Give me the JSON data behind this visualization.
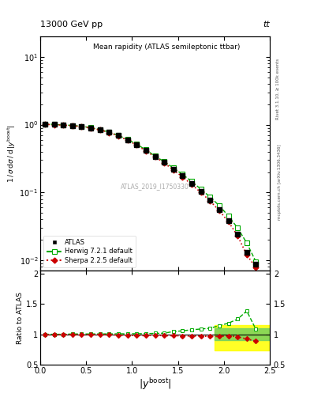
{
  "title": "Mean rapidity (ATLAS semileptonic ttbar)",
  "top_left_label": "13000 GeV pp",
  "top_right_label": "tt",
  "right_label_top": "Rivet 3.1.10, ≥ 100k events",
  "right_label_bot": "mcplots.cern.ch [arXiv:1306.3436]",
  "watermark": "ATLAS_2019_I1750330",
  "xlim": [
    0.0,
    2.5
  ],
  "ylim_main": [
    0.007,
    20
  ],
  "ylim_ratio": [
    0.5,
    2.05
  ],
  "atlas_x": [
    0.05,
    0.15,
    0.25,
    0.35,
    0.45,
    0.55,
    0.65,
    0.75,
    0.85,
    0.95,
    1.05,
    1.15,
    1.25,
    1.35,
    1.45,
    1.55,
    1.65,
    1.75,
    1.85,
    1.95,
    2.05,
    2.15,
    2.25,
    2.35
  ],
  "atlas_y": [
    1.02,
    1.01,
    0.99,
    0.97,
    0.94,
    0.9,
    0.84,
    0.77,
    0.69,
    0.6,
    0.51,
    0.42,
    0.34,
    0.28,
    0.22,
    0.175,
    0.135,
    0.103,
    0.078,
    0.056,
    0.038,
    0.024,
    0.013,
    0.0088
  ],
  "herwig_x": [
    0.05,
    0.15,
    0.25,
    0.35,
    0.45,
    0.55,
    0.65,
    0.75,
    0.85,
    0.95,
    1.05,
    1.15,
    1.25,
    1.35,
    1.45,
    1.55,
    1.65,
    1.75,
    1.85,
    1.95,
    2.05,
    2.15,
    2.25,
    2.35
  ],
  "herwig_y": [
    1.02,
    1.01,
    0.99,
    0.975,
    0.945,
    0.905,
    0.845,
    0.775,
    0.695,
    0.605,
    0.515,
    0.425,
    0.345,
    0.285,
    0.23,
    0.185,
    0.145,
    0.112,
    0.086,
    0.064,
    0.045,
    0.03,
    0.018,
    0.0095
  ],
  "sherpa_x": [
    0.05,
    0.15,
    0.25,
    0.35,
    0.45,
    0.55,
    0.65,
    0.75,
    0.85,
    0.95,
    1.05,
    1.15,
    1.25,
    1.35,
    1.45,
    1.55,
    1.65,
    1.75,
    1.85,
    1.95,
    2.05,
    2.15,
    2.25,
    2.35
  ],
  "sherpa_y": [
    1.01,
    1.0,
    0.985,
    0.965,
    0.935,
    0.895,
    0.835,
    0.765,
    0.68,
    0.59,
    0.5,
    0.41,
    0.335,
    0.273,
    0.215,
    0.17,
    0.131,
    0.1,
    0.075,
    0.054,
    0.037,
    0.023,
    0.012,
    0.0078
  ],
  "atlas_color": "#000000",
  "herwig_color": "#00aa00",
  "sherpa_color": "#cc0000",
  "herwig_ratio": [
    1.0,
    1.0,
    1.0,
    1.005,
    1.005,
    1.005,
    1.006,
    1.006,
    1.007,
    1.008,
    1.009,
    1.01,
    1.015,
    1.018,
    1.045,
    1.057,
    1.074,
    1.087,
    1.1,
    1.143,
    1.184,
    1.25,
    1.385,
    1.08
  ],
  "sherpa_ratio": [
    0.99,
    0.99,
    0.995,
    0.995,
    0.994,
    0.994,
    0.994,
    0.993,
    0.985,
    0.983,
    0.98,
    0.976,
    0.985,
    0.975,
    0.977,
    0.971,
    0.97,
    0.971,
    0.962,
    0.964,
    0.974,
    0.958,
    0.923,
    0.886
  ],
  "yellow_band_xlo": 1.9,
  "yellow_band_xhi": 2.5,
  "yellow_band_lo": 0.73,
  "yellow_band_hi": 1.15,
  "green_band_xlo": 1.9,
  "green_band_xhi": 2.5,
  "green_band_lo": 0.9,
  "green_band_hi": 1.105
}
